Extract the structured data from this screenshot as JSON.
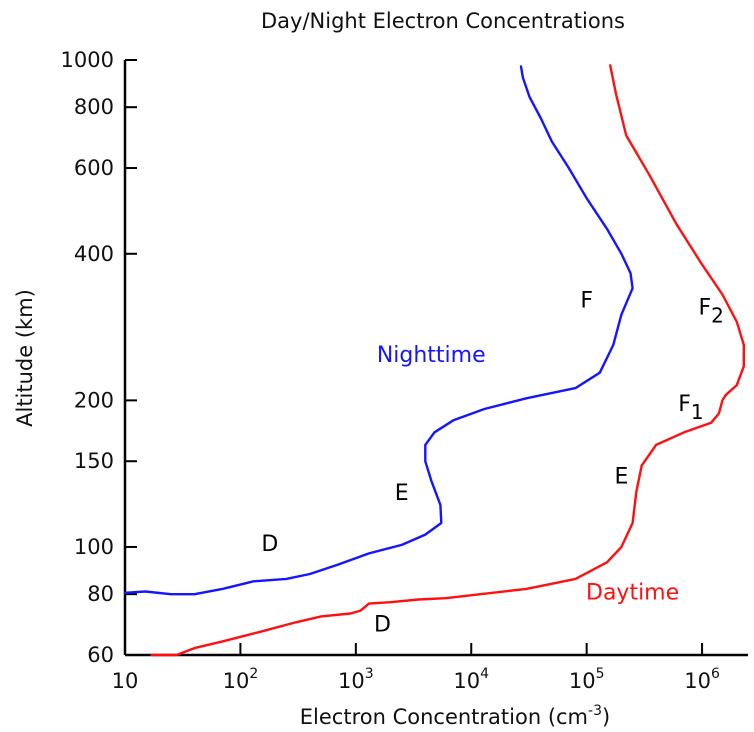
{
  "chart_data": {
    "type": "line",
    "title": "Day/Night Electron Concentrations",
    "xlabel": "Electron Concentration (cm",
    "xlabel_exponent": "-3",
    "xlabel_suffix": ")",
    "ylabel": "Altitude (km)",
    "x_scale": "log",
    "y_scale": "log",
    "xlim": [
      10,
      2500000
    ],
    "ylim": [
      60,
      1000
    ],
    "grid": false,
    "x_ticks": [
      {
        "base": "10",
        "exp": "",
        "value": 10
      },
      {
        "base": "10",
        "exp": "2",
        "value": 100
      },
      {
        "base": "10",
        "exp": "3",
        "value": 1000
      },
      {
        "base": "10",
        "exp": "4",
        "value": 10000
      },
      {
        "base": "10",
        "exp": "5",
        "value": 100000
      },
      {
        "base": "10",
        "exp": "6",
        "value": 1000000
      }
    ],
    "y_ticks": [
      {
        "label": "60",
        "value": 60
      },
      {
        "label": "80",
        "value": 80
      },
      {
        "label": "100",
        "value": 100
      },
      {
        "label": "150",
        "value": 150
      },
      {
        "label": "200",
        "value": 200
      },
      {
        "label": "400",
        "value": 400
      },
      {
        "label": "600",
        "value": 600
      },
      {
        "label": "800",
        "value": 800
      },
      {
        "label": "1000",
        "value": 1000
      }
    ],
    "series": [
      {
        "name": "Nighttime",
        "color": "#1515ff",
        "x": [
          10,
          15,
          25,
          40,
          70,
          130,
          250,
          400,
          700,
          1300,
          2500,
          4000,
          5500,
          5400,
          4500,
          4000,
          4000,
          4800,
          7000,
          13000,
          30000,
          80000,
          130000,
          170000,
          200000,
          250000,
          240000,
          200000,
          150000,
          100000,
          70000,
          50000,
          40000,
          32000,
          28000,
          27000
        ],
        "y": [
          80.5,
          81,
          80,
          80,
          82,
          85,
          86,
          88,
          92,
          97,
          101,
          106,
          112,
          122,
          137,
          150,
          162,
          172,
          182,
          192,
          202,
          212,
          228,
          260,
          300,
          340,
          365,
          400,
          450,
          520,
          600,
          680,
          760,
          840,
          920,
          970
        ]
      },
      {
        "name": "Daytime",
        "color": "#ff1010",
        "x": [
          17,
          28,
          40,
          70,
          150,
          300,
          500,
          900,
          1100,
          1300,
          2000,
          3500,
          6000,
          12000,
          30000,
          80000,
          150000,
          200000,
          250000,
          270000,
          300000,
          400000,
          700000,
          1200000,
          1400000,
          1500000,
          1600000,
          2000000,
          2300000,
          2300000,
          2000000,
          1500000,
          1000000,
          600000,
          350000,
          220000,
          180000,
          160000
        ],
        "y": [
          60,
          60,
          62,
          64,
          67,
          70,
          72,
          73,
          74,
          76.5,
          77,
          78,
          78.5,
          80,
          82,
          86,
          93,
          100,
          112,
          130,
          147,
          162,
          172,
          180,
          188,
          200,
          205,
          215,
          235,
          260,
          290,
          330,
          380,
          460,
          580,
          700,
          850,
          975
        ]
      }
    ],
    "annotations": [
      {
        "text": "Nighttime",
        "color": "#1515ff",
        "x": 4500,
        "y": 240
      },
      {
        "text": "Daytime",
        "color": "#ff1010",
        "x": 250000,
        "y": 78
      },
      {
        "text": "F",
        "sub": "",
        "color": "#000000",
        "x": 100000,
        "y": 310
      },
      {
        "text": "E",
        "sub": "",
        "color": "#000000",
        "x": 2500,
        "y": 125
      },
      {
        "text": "D",
        "sub": "",
        "color": "#000000",
        "x": 180,
        "y": 98
      },
      {
        "text": "F",
        "sub": "2",
        "color": "#000000",
        "x": 1200000,
        "y": 300
      },
      {
        "text": "F",
        "sub": "1",
        "color": "#000000",
        "x": 800000,
        "y": 190
      },
      {
        "text": "E",
        "sub": "",
        "color": "#000000",
        "x": 200000,
        "y": 135
      },
      {
        "text": "D",
        "sub": "",
        "color": "#000000",
        "x": 1700,
        "y": 67
      }
    ]
  }
}
